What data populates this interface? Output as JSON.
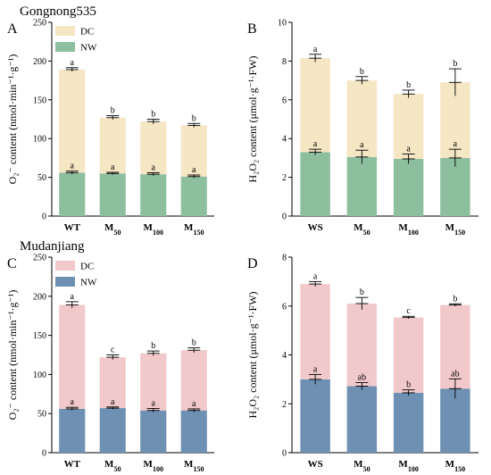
{
  "chart_data": [
    {
      "panel": "A",
      "cultivar": "Gongnong535",
      "type": "bar",
      "stacked": true,
      "categories": [
        {
          "base": "WT",
          "sub": ""
        },
        {
          "base": "M",
          "sub": "50"
        },
        {
          "base": "M",
          "sub": "100"
        },
        {
          "base": "M",
          "sub": "150"
        }
      ],
      "ylabel": "O₂⁻ content (nmol·min⁻¹·g⁻¹)",
      "ylim": [
        0,
        250
      ],
      "yticks": [
        0,
        50,
        100,
        150,
        200,
        250
      ],
      "legend": {
        "position": "top-left",
        "order": [
          "DC",
          "NW"
        ]
      },
      "series": [
        {
          "name": "NW",
          "color": "#8dbf9e",
          "values": [
            56,
            55,
            54,
            51
          ],
          "errors": [
            2,
            1.5,
            2,
            2
          ],
          "letters": [
            "a",
            "a",
            "a",
            "a"
          ]
        },
        {
          "name": "DC",
          "color": "#f5e6c4",
          "values": [
            133,
            72,
            68,
            66
          ],
          "errors": [
            2.5,
            2.5,
            3,
            2.5
          ],
          "letters": [
            "a",
            "b",
            "b",
            "b"
          ]
        }
      ]
    },
    {
      "panel": "B",
      "cultivar": "",
      "type": "bar",
      "stacked": true,
      "categories": [
        {
          "base": "WS",
          "sub": ""
        },
        {
          "base": "M",
          "sub": "50"
        },
        {
          "base": "M",
          "sub": "100"
        },
        {
          "base": "M",
          "sub": "150"
        }
      ],
      "ylabel": "H₂O₂ content (μmol·g⁻¹·FW)",
      "ylim": [
        0,
        10
      ],
      "yticks": [
        0,
        2,
        4,
        6,
        8,
        10
      ],
      "legend": null,
      "series": [
        {
          "name": "NW",
          "color": "#8dbf9e",
          "values": [
            3.3,
            3.05,
            2.95,
            3.0
          ],
          "errors": [
            0.15,
            0.35,
            0.25,
            0.45
          ],
          "letters": [
            "a",
            "a",
            "a",
            "a"
          ]
        },
        {
          "name": "DC",
          "color": "#f5e6c4",
          "values": [
            4.85,
            3.95,
            3.35,
            3.9
          ],
          "errors": [
            0.2,
            0.2,
            0.2,
            0.7
          ],
          "letters": [
            "a",
            "b",
            "b",
            "b"
          ]
        }
      ]
    },
    {
      "panel": "C",
      "cultivar": "Mudanjiang",
      "type": "bar",
      "stacked": true,
      "categories": [
        {
          "base": "WT",
          "sub": ""
        },
        {
          "base": "M",
          "sub": "50"
        },
        {
          "base": "M",
          "sub": "100"
        },
        {
          "base": "M",
          "sub": "150"
        }
      ],
      "ylabel": "O₂⁻ content (nmol·min⁻¹·g⁻¹)",
      "ylim": [
        0,
        250
      ],
      "yticks": [
        0,
        50,
        100,
        150,
        200,
        250
      ],
      "legend": {
        "position": "top-left",
        "order": [
          "DC",
          "NW"
        ]
      },
      "series": [
        {
          "name": "NW",
          "color": "#6e90b3",
          "values": [
            56,
            57,
            54,
            54
          ],
          "errors": [
            2,
            1.5,
            2.5,
            2
          ],
          "letters": [
            "a",
            "a",
            "a",
            "a"
          ]
        },
        {
          "name": "DC",
          "color": "#f2c9cb",
          "values": [
            133,
            65,
            73,
            77
          ],
          "errors": [
            4,
            3,
            3,
            3
          ],
          "letters": [
            "a",
            "c",
            "b",
            "b"
          ]
        }
      ]
    },
    {
      "panel": "D",
      "cultivar": "",
      "type": "bar",
      "stacked": true,
      "categories": [
        {
          "base": "WS",
          "sub": ""
        },
        {
          "base": "M",
          "sub": "50"
        },
        {
          "base": "M",
          "sub": "100"
        },
        {
          "base": "M",
          "sub": "150"
        }
      ],
      "ylabel": "H₂O₂ content (μmol·g⁻¹·FW)",
      "ylim": [
        0,
        8
      ],
      "yticks": [
        0,
        2,
        4,
        6,
        8
      ],
      "legend": null,
      "series": [
        {
          "name": "NW",
          "color": "#6e90b3",
          "values": [
            3.0,
            2.72,
            2.45,
            2.62
          ],
          "errors": [
            0.2,
            0.15,
            0.12,
            0.4
          ],
          "letters": [
            "a",
            "ab",
            "b",
            "ab"
          ]
        },
        {
          "name": "DC",
          "color": "#f2c9cb",
          "values": [
            3.9,
            3.38,
            3.08,
            3.42
          ],
          "errors": [
            0.1,
            0.25,
            0.05,
            0.05
          ],
          "letters": [
            "a",
            "b",
            "c",
            "b"
          ]
        }
      ]
    }
  ]
}
